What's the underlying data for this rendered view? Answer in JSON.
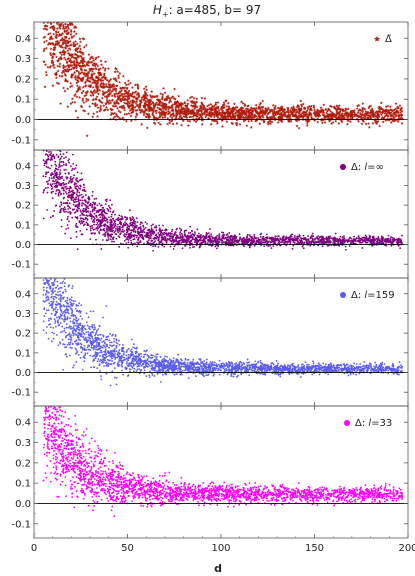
{
  "figure": {
    "title_prefix": "H",
    "title_subscript": "+",
    "title_suffix": ": a=485, b= 97",
    "xlabel": "d"
  },
  "chart_data": {
    "type": "scatter",
    "title": "H+: a=485, b= 97",
    "xlabel": "d",
    "xlim": [
      0,
      200
    ],
    "xticks": [
      0,
      50,
      100,
      150,
      200
    ],
    "shared_x": true,
    "grid": false,
    "legend_position": "top-right",
    "panels": [
      {
        "legend": "Δ̃",
        "legend_base": "Δ",
        "legend_accent": "̃",
        "marker": "star",
        "color": "#b01c0e",
        "ylim": [
          -0.15,
          0.48
        ],
        "yticks": [
          -0.1,
          0.0,
          0.1,
          0.2,
          0.3,
          0.4
        ],
        "ytick_labels": [
          "-0.1",
          "0.0",
          "0.1",
          "0.2",
          "0.3",
          "0.4"
        ],
        "x_range": [
          5,
          197
        ],
        "decay": {
          "asymptote": 0.025,
          "amplitude": 0.55,
          "scale": 22
        },
        "spread": {
          "base": 0.02,
          "amplitude": 0.13,
          "scale": 30
        },
        "approx_points": 2600
      },
      {
        "legend": "Δ: l=∞",
        "legend_base": "Δ: ",
        "legend_var": "l",
        "legend_rest": "=∞",
        "marker": "dot",
        "color": "#800080",
        "ylim": [
          -0.17,
          0.48
        ],
        "yticks": [
          -0.1,
          0.0,
          0.1,
          0.2,
          0.3,
          0.4
        ],
        "ytick_labels": [
          "-0.1",
          "0.0",
          "0.1",
          "0.2",
          "0.3",
          "0.4"
        ],
        "x_range": [
          5,
          197
        ],
        "decay": {
          "asymptote": 0.018,
          "amplitude": 0.5,
          "scale": 20
        },
        "spread": {
          "base": 0.012,
          "amplitude": 0.13,
          "scale": 28
        },
        "approx_points": 2600
      },
      {
        "legend": "Δ: l=159",
        "legend_base": "Δ: ",
        "legend_var": "l",
        "legend_rest": "=159",
        "marker": "dot",
        "color": "#5a5af5",
        "ylim": [
          -0.17,
          0.48
        ],
        "yticks": [
          -0.1,
          0.0,
          0.1,
          0.2,
          0.3,
          0.4
        ],
        "ytick_labels": [
          "-0.1",
          "0.0",
          "0.1",
          "0.2",
          "0.3",
          "0.4"
        ],
        "x_range": [
          5,
          197
        ],
        "decay": {
          "asymptote": 0.018,
          "amplitude": 0.5,
          "scale": 20
        },
        "spread": {
          "base": 0.012,
          "amplitude": 0.13,
          "scale": 28
        },
        "approx_points": 2600
      },
      {
        "legend": "Δ: l=33",
        "legend_base": "Δ: ",
        "legend_var": "l",
        "legend_rest": "=33",
        "marker": "dot",
        "color": "#ff00ff",
        "ylim": [
          -0.17,
          0.48
        ],
        "yticks": [
          -0.1,
          0.0,
          0.1,
          0.2,
          0.3,
          0.4
        ],
        "ytick_labels": [
          "-0.1",
          "0.0",
          "0.1",
          "0.2",
          "0.3",
          "0.4"
        ],
        "x_range": [
          5,
          197
        ],
        "decay": {
          "asymptote": 0.045,
          "amplitude": 0.42,
          "scale": 18
        },
        "spread": {
          "base": 0.018,
          "amplitude": 0.13,
          "scale": 28
        },
        "approx_points": 2600
      }
    ]
  }
}
